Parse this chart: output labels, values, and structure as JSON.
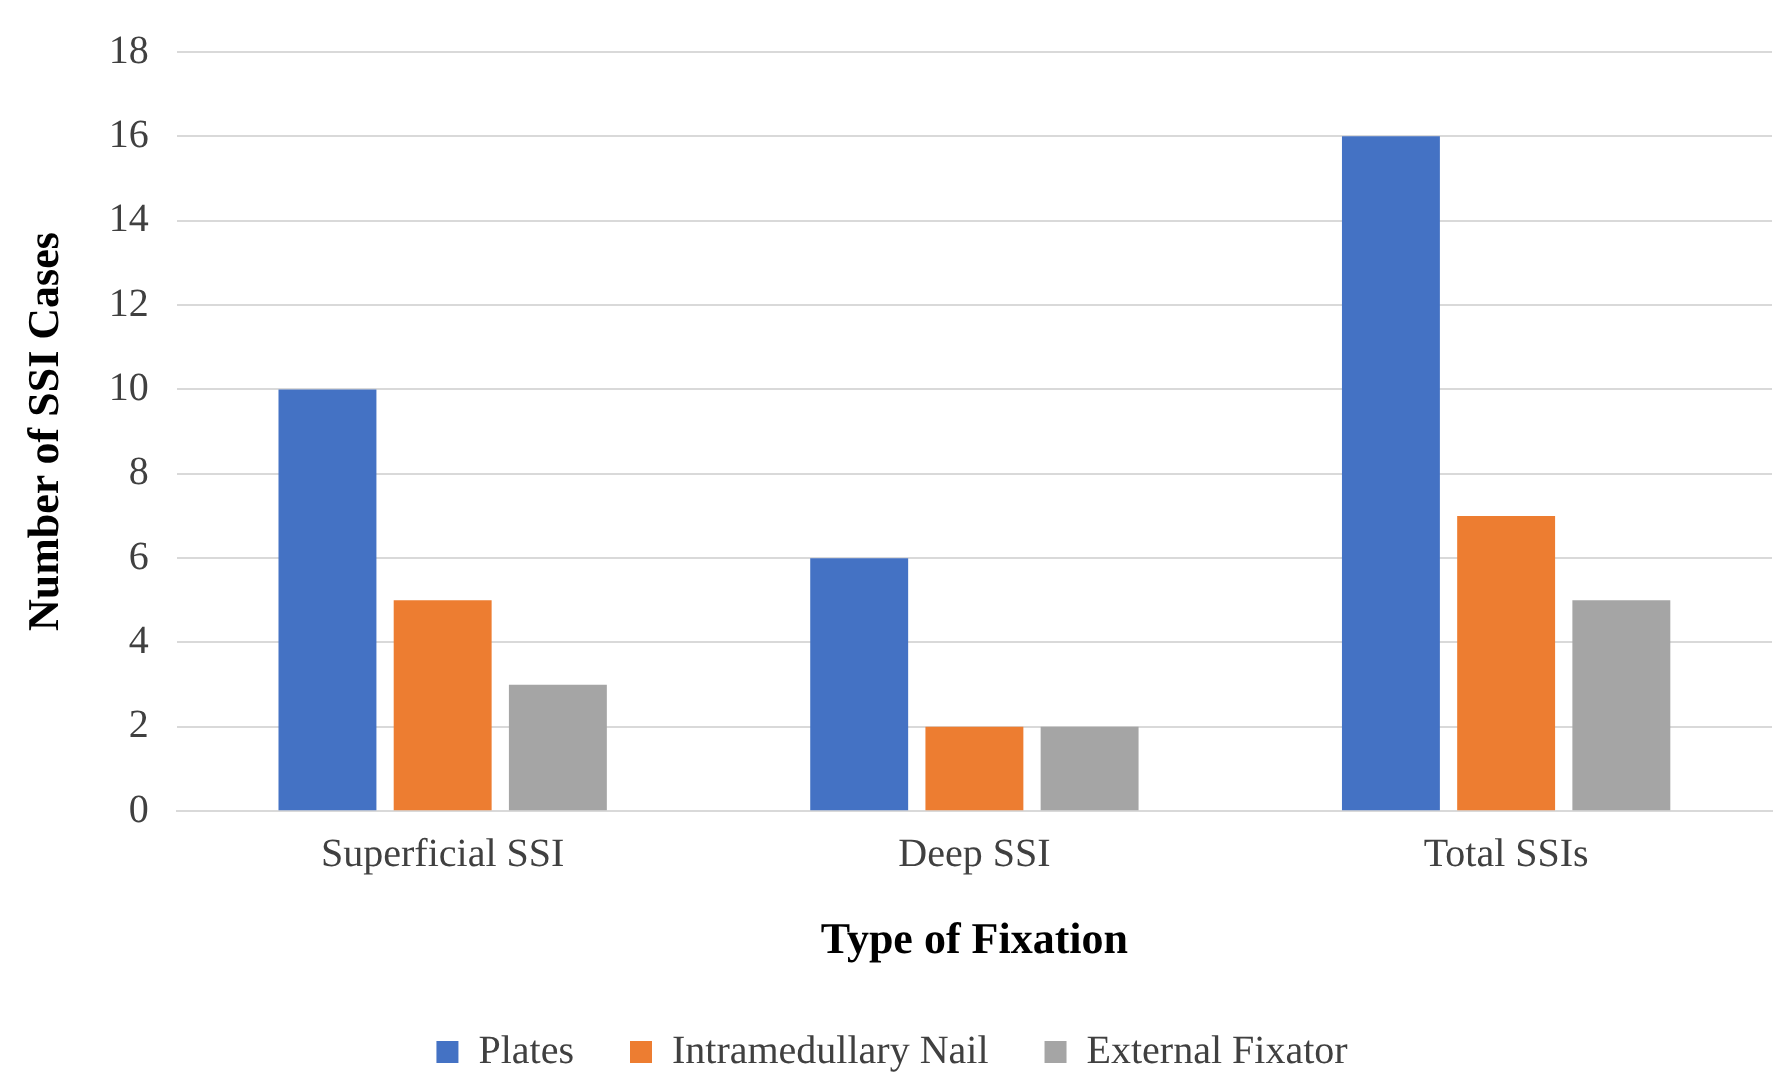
{
  "chart_data": {
    "type": "bar",
    "xlabel": "Type of Fixation",
    "ylabel": "Number of SSI Cases",
    "categories": [
      "Superficial SSI",
      "Deep SSI",
      "Total SSIs"
    ],
    "series": [
      {
        "name": "Plates",
        "color": "#4472c4",
        "values": [
          10,
          6,
          16
        ]
      },
      {
        "name": "Intramedullary Nail",
        "color": "#ed7d31",
        "values": [
          5,
          2,
          7
        ]
      },
      {
        "name": "External Fixator",
        "color": "#a5a5a5",
        "values": [
          3,
          2,
          5
        ]
      }
    ],
    "ylim": [
      0,
      18
    ],
    "yticks": [
      0,
      2,
      4,
      6,
      8,
      10,
      12,
      14,
      16,
      18
    ],
    "grid": "y",
    "legend": "bottom"
  }
}
